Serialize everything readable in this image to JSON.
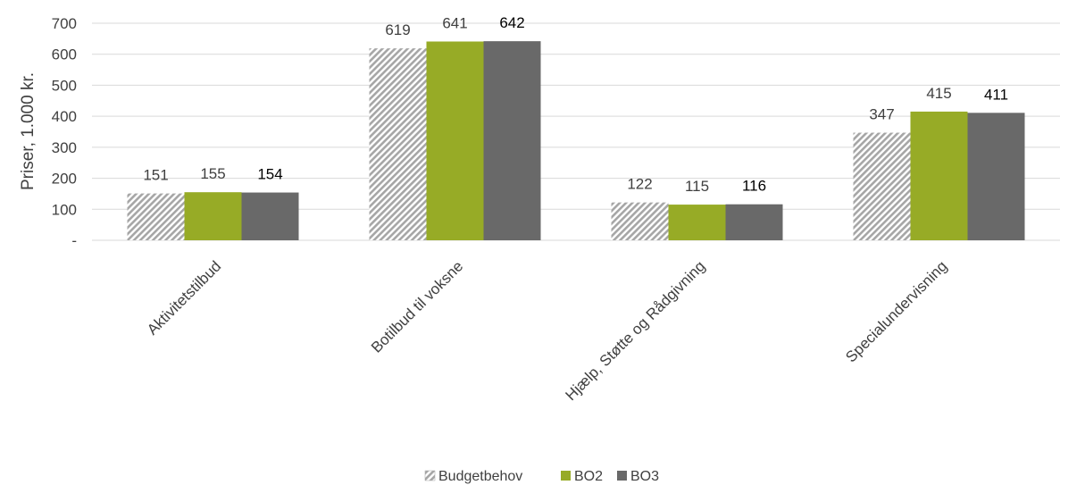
{
  "chart_data": {
    "type": "bar",
    "ylabel": "Priser, 1.000 kr.",
    "xlabel": "",
    "ylim": [
      0,
      700
    ],
    "ytick_values": [
      0,
      100,
      200,
      300,
      400,
      500,
      600,
      700
    ],
    "ytick_labels": [
      "-",
      "100",
      "200",
      "300",
      "400",
      "500",
      "600",
      "700"
    ],
    "categories": [
      "Aktivitetstilbud",
      "Botilbud til voksne",
      "Hjælp, Støtte og Rådgivning",
      "Specialundervisning"
    ],
    "series": [
      {
        "name": "Budgetbehov",
        "values": [
          151,
          619,
          122,
          347
        ],
        "color": "#a6a6a6",
        "pattern": "diagonal-hatch",
        "label_color": "#404040"
      },
      {
        "name": "BO2",
        "values": [
          155,
          641,
          115,
          415
        ],
        "color": "#97ab26",
        "label_color": "#404040"
      },
      {
        "name": "BO3",
        "values": [
          154,
          642,
          116,
          411
        ],
        "color": "#696969",
        "label_color": "#000000"
      }
    ],
    "grid": true,
    "legend_position": "bottom-center"
  }
}
